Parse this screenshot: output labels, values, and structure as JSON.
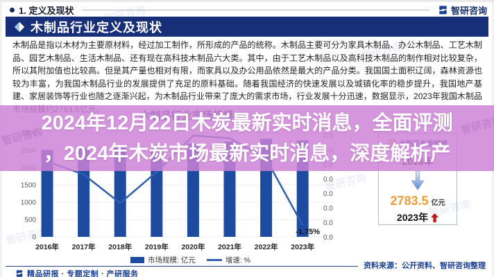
{
  "page": {
    "section_label": "1. 定义及现状",
    "brand_name": "智研咨询",
    "banner_title": "木制品行业定义及现状",
    "body_text": "木制品是指以木材为主要原材料，经过加工制作，所形成的产品的统称。木制品主要可分为家具木制品、办公木制品、工艺木制品、园艺木制品、生活木制品、还有现在高科技木制品六大类。其中，由于工艺木制品以及高科技木制品的制作相对比较复杂，所以其附加值也比较高。但是其产量也相对有限，而家具以及办公用品依然是最大的产品分类。我国国土面积辽阔，森林资源也较为丰富，为我国木制品行业的发展提供了充足的原料基础。随着我国经济的快速发展以及城镇化率的稳步提升，我国地产基建、家居装饰等行业也随之逐渐兴起，为木制品行业带来了庞大的需求市场，行业发展十分迅速，数据显示，2023年我国木制品市场规模约2783.5亿元。",
    "source_note": "资料来源：公开资料、智研咨询整理",
    "footer_tagline": "精品研报 · 专题定制 · 产研服务",
    "watermark_text": "智研咨询"
  },
  "overlay": {
    "line1": "2024年12月22日木炭最新实时消息，全面评测",
    "line2": "，2024年木炭市场最新实时消息，深度解析产",
    "background": "#cd82d6"
  },
  "highlight_panel": {
    "title": "木制品市场规模",
    "from_year": "2016年",
    "value": "2783.5",
    "unit": "亿元",
    "to_year": "2023年",
    "value_color": "#ee9d35"
  },
  "chart_data": {
    "type": "bar",
    "title": "木制品行业市场规模",
    "categories": [
      "2016年",
      "2017年",
      "2018年",
      "2019年",
      "2020年",
      "2021年",
      "2022年",
      "2023年"
    ],
    "series": [
      {
        "name": "市场规模: 亿元",
        "type": "bar",
        "color": "#1c4ba0",
        "values": [
          2510,
          2560,
          2601,
          2650,
          2699,
          2750,
          2833.1,
          2783.5
        ]
      },
      {
        "name": "增速: %",
        "type": "line",
        "color": "#2f5fae",
        "values": [
          10.5,
          8.0,
          2.5,
          8.5,
          15.5,
          15.0,
          11.0,
          -1.75
        ],
        "axis_min": -4,
        "axis_max": 16
      }
    ],
    "left_axis": {
      "ticks": [
        0,
        500,
        1000,
        1500,
        2000,
        2500,
        3000
      ],
      "max": 3000
    },
    "right_axis": {
      "tick_label": "0.0",
      "count": 8
    },
    "annotations": [
      {
        "year": "2023年",
        "text": "-1.75%"
      }
    ],
    "legend_position": "bottom",
    "grid": true
  }
}
